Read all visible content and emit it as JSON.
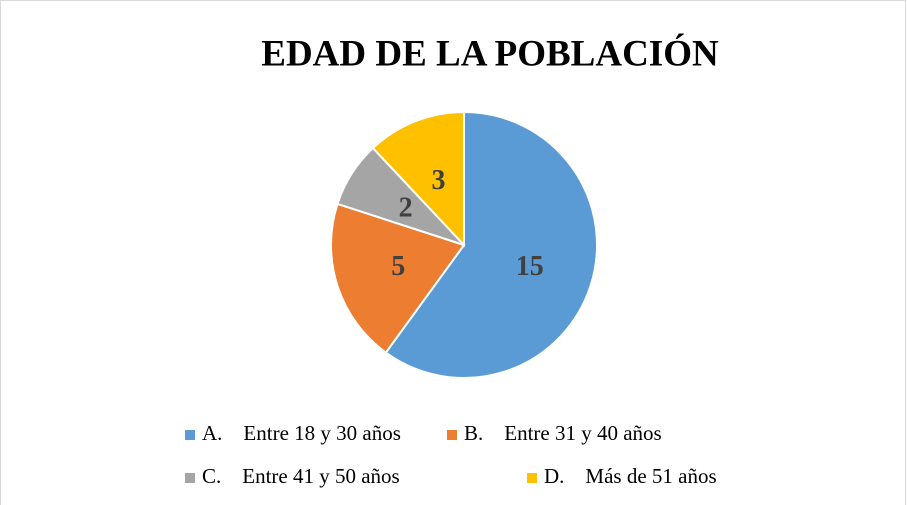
{
  "chart_data": {
    "type": "pie",
    "title": "EDAD DE LA POBLACIÓN",
    "categories": [
      "A.    Entre 18 y 30 años",
      "B.    Entre 31 y 40 años",
      "C.    Entre 41 y 50 años",
      "D.    Más de 51 años"
    ],
    "values": [
      15,
      5,
      2,
      3
    ],
    "colors": [
      "#5b9bd5",
      "#ed7d31",
      "#a5a5a5",
      "#ffc000"
    ],
    "legend": "bottom"
  }
}
